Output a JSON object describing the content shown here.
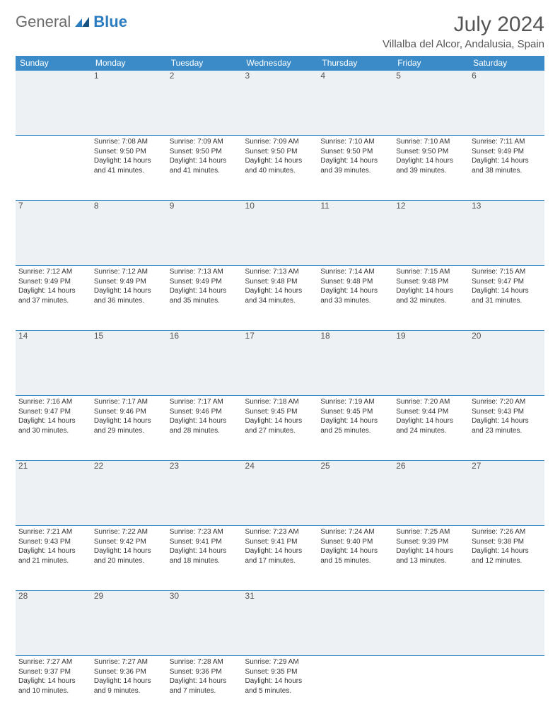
{
  "logo": {
    "text1": "General",
    "text2": "Blue"
  },
  "title": "July 2024",
  "location": "Villalba del Alcor, Andalusia, Spain",
  "colors": {
    "header_bg": "#3b8bc8",
    "header_text": "#ffffff",
    "daynum_bg": "#eef1f3",
    "border": "#3b8bc8",
    "body_text": "#333333",
    "title_text": "#555555",
    "logo_gray": "#6b6b6b",
    "logo_blue": "#2b7bbf"
  },
  "weekdays": [
    "Sunday",
    "Monday",
    "Tuesday",
    "Wednesday",
    "Thursday",
    "Friday",
    "Saturday"
  ],
  "weeks": [
    {
      "nums": [
        "",
        "1",
        "2",
        "3",
        "4",
        "5",
        "6"
      ],
      "cells": [
        null,
        {
          "sunrise": "7:08 AM",
          "sunset": "9:50 PM",
          "daylight": "14 hours and 41 minutes."
        },
        {
          "sunrise": "7:09 AM",
          "sunset": "9:50 PM",
          "daylight": "14 hours and 41 minutes."
        },
        {
          "sunrise": "7:09 AM",
          "sunset": "9:50 PM",
          "daylight": "14 hours and 40 minutes."
        },
        {
          "sunrise": "7:10 AM",
          "sunset": "9:50 PM",
          "daylight": "14 hours and 39 minutes."
        },
        {
          "sunrise": "7:10 AM",
          "sunset": "9:50 PM",
          "daylight": "14 hours and 39 minutes."
        },
        {
          "sunrise": "7:11 AM",
          "sunset": "9:49 PM",
          "daylight": "14 hours and 38 minutes."
        }
      ]
    },
    {
      "nums": [
        "7",
        "8",
        "9",
        "10",
        "11",
        "12",
        "13"
      ],
      "cells": [
        {
          "sunrise": "7:12 AM",
          "sunset": "9:49 PM",
          "daylight": "14 hours and 37 minutes."
        },
        {
          "sunrise": "7:12 AM",
          "sunset": "9:49 PM",
          "daylight": "14 hours and 36 minutes."
        },
        {
          "sunrise": "7:13 AM",
          "sunset": "9:49 PM",
          "daylight": "14 hours and 35 minutes."
        },
        {
          "sunrise": "7:13 AM",
          "sunset": "9:48 PM",
          "daylight": "14 hours and 34 minutes."
        },
        {
          "sunrise": "7:14 AM",
          "sunset": "9:48 PM",
          "daylight": "14 hours and 33 minutes."
        },
        {
          "sunrise": "7:15 AM",
          "sunset": "9:48 PM",
          "daylight": "14 hours and 32 minutes."
        },
        {
          "sunrise": "7:15 AM",
          "sunset": "9:47 PM",
          "daylight": "14 hours and 31 minutes."
        }
      ]
    },
    {
      "nums": [
        "14",
        "15",
        "16",
        "17",
        "18",
        "19",
        "20"
      ],
      "cells": [
        {
          "sunrise": "7:16 AM",
          "sunset": "9:47 PM",
          "daylight": "14 hours and 30 minutes."
        },
        {
          "sunrise": "7:17 AM",
          "sunset": "9:46 PM",
          "daylight": "14 hours and 29 minutes."
        },
        {
          "sunrise": "7:17 AM",
          "sunset": "9:46 PM",
          "daylight": "14 hours and 28 minutes."
        },
        {
          "sunrise": "7:18 AM",
          "sunset": "9:45 PM",
          "daylight": "14 hours and 27 minutes."
        },
        {
          "sunrise": "7:19 AM",
          "sunset": "9:45 PM",
          "daylight": "14 hours and 25 minutes."
        },
        {
          "sunrise": "7:20 AM",
          "sunset": "9:44 PM",
          "daylight": "14 hours and 24 minutes."
        },
        {
          "sunrise": "7:20 AM",
          "sunset": "9:43 PM",
          "daylight": "14 hours and 23 minutes."
        }
      ]
    },
    {
      "nums": [
        "21",
        "22",
        "23",
        "24",
        "25",
        "26",
        "27"
      ],
      "cells": [
        {
          "sunrise": "7:21 AM",
          "sunset": "9:43 PM",
          "daylight": "14 hours and 21 minutes."
        },
        {
          "sunrise": "7:22 AM",
          "sunset": "9:42 PM",
          "daylight": "14 hours and 20 minutes."
        },
        {
          "sunrise": "7:23 AM",
          "sunset": "9:41 PM",
          "daylight": "14 hours and 18 minutes."
        },
        {
          "sunrise": "7:23 AM",
          "sunset": "9:41 PM",
          "daylight": "14 hours and 17 minutes."
        },
        {
          "sunrise": "7:24 AM",
          "sunset": "9:40 PM",
          "daylight": "14 hours and 15 minutes."
        },
        {
          "sunrise": "7:25 AM",
          "sunset": "9:39 PM",
          "daylight": "14 hours and 13 minutes."
        },
        {
          "sunrise": "7:26 AM",
          "sunset": "9:38 PM",
          "daylight": "14 hours and 12 minutes."
        }
      ]
    },
    {
      "nums": [
        "28",
        "29",
        "30",
        "31",
        "",
        "",
        ""
      ],
      "cells": [
        {
          "sunrise": "7:27 AM",
          "sunset": "9:37 PM",
          "daylight": "14 hours and 10 minutes."
        },
        {
          "sunrise": "7:27 AM",
          "sunset": "9:36 PM",
          "daylight": "14 hours and 9 minutes."
        },
        {
          "sunrise": "7:28 AM",
          "sunset": "9:36 PM",
          "daylight": "14 hours and 7 minutes."
        },
        {
          "sunrise": "7:29 AM",
          "sunset": "9:35 PM",
          "daylight": "14 hours and 5 minutes."
        },
        null,
        null,
        null
      ]
    }
  ],
  "labels": {
    "sunrise": "Sunrise:",
    "sunset": "Sunset:",
    "daylight": "Daylight:"
  }
}
